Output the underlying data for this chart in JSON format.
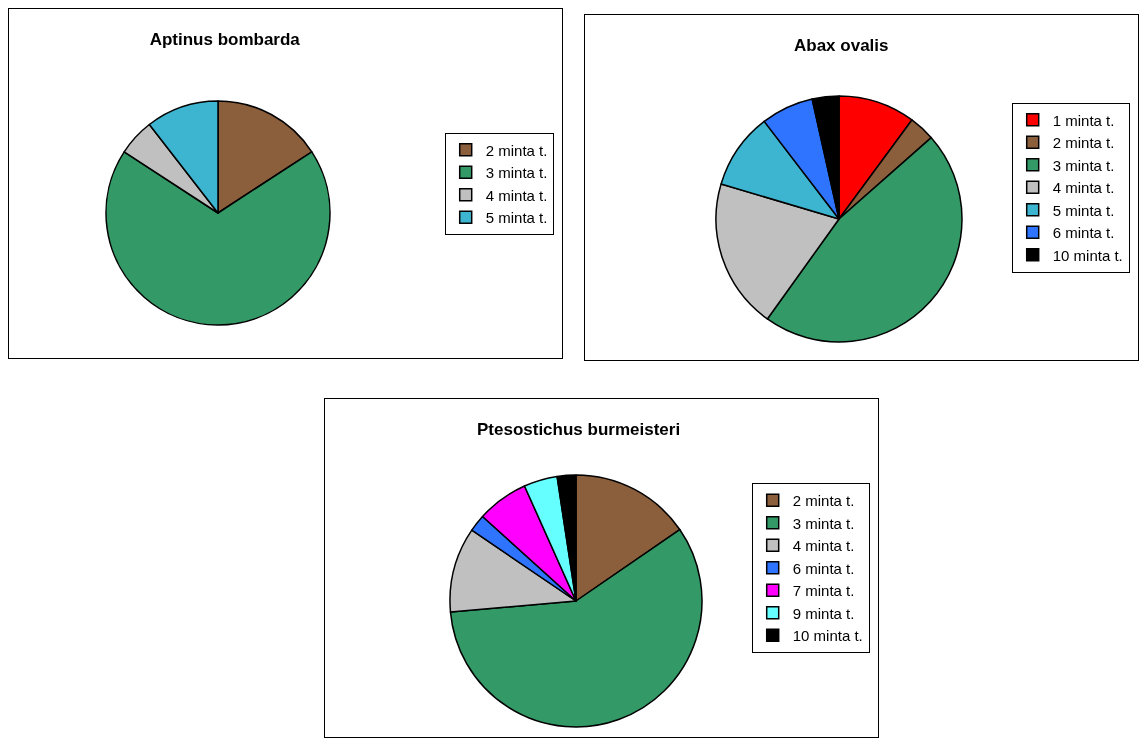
{
  "chart_data": [
    {
      "type": "pie",
      "title": "Aptinus bombarda",
      "categories": [
        "2 minta t.",
        "3 minta t.",
        "4 minta t.",
        "5 minta t."
      ],
      "values": [
        15.8,
        68.4,
        5.3,
        10.5
      ],
      "colors": [
        "#8b5e3c",
        "#339966",
        "#c0c0c0",
        "#3eb5d0"
      ],
      "legend": "right"
    },
    {
      "type": "pie",
      "title": "Abax ovalis",
      "categories": [
        "1 minta t.",
        "2 minta t.",
        "3 minta t.",
        "4 minta t.",
        "5 minta t.",
        "6 minta t.",
        "10 minta t."
      ],
      "values": [
        10.1,
        3.4,
        46.4,
        19.7,
        10,
        6.9,
        3.5
      ],
      "colors": [
        "#ff0000",
        "#8b5e3c",
        "#339966",
        "#c0c0c0",
        "#3eb5d0",
        "#2f74ff",
        "#000000"
      ],
      "legend": "right"
    },
    {
      "type": "pie",
      "title": "Ptesostichus burmeisteri",
      "categories": [
        "2 minta t.",
        "3 minta t.",
        "4 minta t.",
        "6 minta t.",
        "7 minta t.",
        "9 minta t.",
        "10 minta t."
      ],
      "values": [
        15.4,
        58.2,
        10.9,
        2.2,
        6.6,
        4.3,
        2.4
      ],
      "colors": [
        "#8b5e3c",
        "#339966",
        "#c0c0c0",
        "#2f74ff",
        "#ff00ff",
        "#66ffff",
        "#000000"
      ],
      "legend": "right"
    }
  ]
}
